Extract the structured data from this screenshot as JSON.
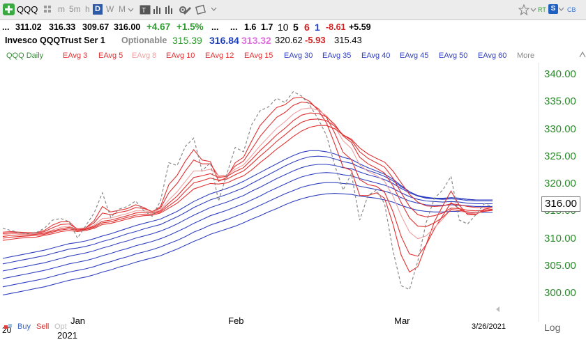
{
  "toolbar": {
    "symbol": "QQQ",
    "periods": [
      "m",
      "5m",
      "h",
      "D",
      "W",
      "M"
    ],
    "active_period": "D",
    "tags": [
      "RT",
      "CB"
    ],
    "s_label": "S"
  },
  "quote": {
    "prefix": "...",
    "open": "311.02",
    "high": "316.33",
    "low": "309.67",
    "close": "316.00",
    "change": "+4.67",
    "change_pct": "+1.5%",
    "dots1": "...",
    "dots2": "...",
    "v1": "1.6",
    "v2": "1.7",
    "n1": "10",
    "n2": "5",
    "n3": "6",
    "n4": "1",
    "chg2": "-8.61",
    "chg3": "+5.59"
  },
  "info": {
    "name": "Invesco QQQTrust Ser 1",
    "optionable": "Optionable",
    "p1": "315.39",
    "p2": "316.84",
    "p3": "313.32",
    "p4": "320.62",
    "p5": "-5.93",
    "p6": "315.43"
  },
  "ma_legend": {
    "items": [
      {
        "label": "QQQ Daily",
        "color": "#3a8a3a"
      },
      {
        "label": "EAvg 3",
        "color": "#e03030"
      },
      {
        "label": "EAvg 5",
        "color": "#e03030"
      },
      {
        "label": "EAvg 8",
        "color": "#f0a0a0"
      },
      {
        "label": "EAvg 10",
        "color": "#e03030"
      },
      {
        "label": "EAvg 12",
        "color": "#e03030"
      },
      {
        "label": "EAvg 15",
        "color": "#e03030"
      },
      {
        "label": "EAvg 30",
        "color": "#3040c0"
      },
      {
        "label": "EAvg 35",
        "color": "#3040c0"
      },
      {
        "label": "EAvg 40",
        "color": "#3040c0"
      },
      {
        "label": "EAvg 45",
        "color": "#3040c0"
      },
      {
        "label": "EAvg 50",
        "color": "#3040c0"
      },
      {
        "label": "EAvg 60",
        "color": "#3040c0"
      },
      {
        "label": "More",
        "color": "#888888"
      }
    ]
  },
  "chart": {
    "price_label": "316.00",
    "date_label": "3/26/2021",
    "log_label": "Log",
    "y_left_partial": "20",
    "year_label": "2021",
    "buy": "Buy",
    "sell": "Sell",
    "opt": "Opt"
  },
  "chart_data": {
    "type": "line",
    "title": "QQQ Daily",
    "y_ticks": [
      "340.00",
      "335.00",
      "330.00",
      "325.00",
      "320.00",
      "315.00",
      "310.00",
      "305.00",
      "300.00"
    ],
    "ylim": [
      298,
      342
    ],
    "x_ticks": [
      "Jan",
      "Feb",
      "Mar"
    ],
    "x_tick_index": [
      9,
      28,
      48
    ],
    "series": [
      {
        "name": "QQQ Daily",
        "color": "#888888",
        "dashed": true,
        "values": [
          312.0,
          311.6,
          311.2,
          311.0,
          311.2,
          312.0,
          313.5,
          313.8,
          313.2,
          310.2,
          312.5,
          314.8,
          318.5,
          314.0,
          315.5,
          316.0,
          317.0,
          315.2,
          314.2,
          317.0,
          324.0,
          323.5,
          327.0,
          328.5,
          322.5,
          324.0,
          317.0,
          322.0,
          326.8,
          326.0,
          331.0,
          333.5,
          334.2,
          335.8,
          335.0,
          337.0,
          336.2,
          334.5,
          332.0,
          329.0,
          323.5,
          319.0,
          322.0,
          313.5,
          318.0,
          319.0,
          316.5,
          308.0,
          301.5,
          300.8,
          306.0,
          313.0,
          317.5,
          319.0,
          321.5,
          313.5,
          312.8,
          314.5,
          316.5,
          316.0
        ]
      },
      {
        "name": "EAvg 3",
        "color": "#e03030",
        "values": [
          311.3,
          311.4,
          311.3,
          311.2,
          311.2,
          311.6,
          312.6,
          313.2,
          313.2,
          311.7,
          312.1,
          313.4,
          316.0,
          315.0,
          315.3,
          315.6,
          316.3,
          315.8,
          315.0,
          316.0,
          320.0,
          321.7,
          324.3,
          326.4,
          324.5,
          324.2,
          320.6,
          321.3,
          324.0,
          325.0,
          328.0,
          330.8,
          332.5,
          334.1,
          334.6,
          335.8,
          336.0,
          335.2,
          333.6,
          331.3,
          327.4,
          323.2,
          322.6,
          318.0,
          318.0,
          318.5,
          317.5,
          312.8,
          307.1,
          304.0,
          305.0,
          309.0,
          313.2,
          316.1,
          318.8,
          316.2,
          314.5,
          314.5,
          315.5,
          315.8
        ]
      },
      {
        "name": "EAvg 5",
        "color": "#e03030",
        "values": [
          311.0,
          311.2,
          311.2,
          311.1,
          311.1,
          311.4,
          312.1,
          312.7,
          312.8,
          311.9,
          312.1,
          313.0,
          314.8,
          314.5,
          314.9,
          315.2,
          315.8,
          315.6,
          315.1,
          315.7,
          318.5,
          320.2,
          322.5,
          324.5,
          323.8,
          323.8,
          321.5,
          321.7,
          323.4,
          324.3,
          326.5,
          328.8,
          330.6,
          332.3,
          333.2,
          334.5,
          335.1,
          334.9,
          333.9,
          332.3,
          329.4,
          325.9,
          324.6,
          320.9,
          320.0,
          319.7,
          318.6,
          315.1,
          310.5,
          307.3,
          306.9,
          309.0,
          311.9,
          314.3,
          316.7,
          315.6,
          314.7,
          314.6,
          315.3,
          315.5
        ]
      },
      {
        "name": "EAvg 8",
        "color": "#f0a0a0",
        "values": [
          310.8,
          311.0,
          311.0,
          311.0,
          311.0,
          311.2,
          311.7,
          312.2,
          312.4,
          311.8,
          312.0,
          312.6,
          313.8,
          313.9,
          314.3,
          314.7,
          315.2,
          315.2,
          315.0,
          315.4,
          317.2,
          318.7,
          320.6,
          322.5,
          322.5,
          322.8,
          321.6,
          321.7,
          322.8,
          323.6,
          325.3,
          327.1,
          328.7,
          330.3,
          331.5,
          332.9,
          333.8,
          334.0,
          333.6,
          332.6,
          330.6,
          328.0,
          326.6,
          323.6,
          322.4,
          321.7,
          320.6,
          317.9,
          314.3,
          311.3,
          310.1,
          310.6,
          312.1,
          313.7,
          315.5,
          315.2,
          314.8,
          314.7,
          315.1,
          315.3
        ]
      },
      {
        "name": "EAvg 10",
        "color": "#e03030",
        "values": [
          310.5,
          310.7,
          310.8,
          310.8,
          310.9,
          311.1,
          311.5,
          311.9,
          312.2,
          311.7,
          311.9,
          312.4,
          313.3,
          313.5,
          313.9,
          314.3,
          314.8,
          314.9,
          314.8,
          315.2,
          316.6,
          317.9,
          319.6,
          321.3,
          321.6,
          322.0,
          321.3,
          321.5,
          322.4,
          323.1,
          324.6,
          326.2,
          327.6,
          329.1,
          330.3,
          331.7,
          332.7,
          333.1,
          333.0,
          332.4,
          331.0,
          328.9,
          327.7,
          325.0,
          323.8,
          323.0,
          322.1,
          319.8,
          316.7,
          313.9,
          312.4,
          312.3,
          313.0,
          314.0,
          315.4,
          315.3,
          315.0,
          314.9,
          315.1,
          315.3
        ]
      },
      {
        "name": "EAvg 12",
        "color": "#e03030",
        "values": [
          310.2,
          310.4,
          310.5,
          310.6,
          310.7,
          310.9,
          311.3,
          311.7,
          311.9,
          311.6,
          311.8,
          312.2,
          313.0,
          313.2,
          313.6,
          314.0,
          314.4,
          314.6,
          314.6,
          315.0,
          316.1,
          317.2,
          318.8,
          320.3,
          320.7,
          321.2,
          320.8,
          321.0,
          321.8,
          322.5,
          323.8,
          325.2,
          326.5,
          327.9,
          329.1,
          330.4,
          331.4,
          331.9,
          332.0,
          331.7,
          330.7,
          329.1,
          328.1,
          326.0,
          324.8,
          324.0,
          323.2,
          321.2,
          318.5,
          316.0,
          314.5,
          314.1,
          314.3,
          314.8,
          315.7,
          315.6,
          315.3,
          315.2,
          315.3,
          315.4
        ]
      },
      {
        "name": "EAvg 15",
        "color": "#e03030",
        "values": [
          309.8,
          310.0,
          310.2,
          310.3,
          310.4,
          310.7,
          311.0,
          311.4,
          311.6,
          311.4,
          311.6,
          312.0,
          312.7,
          312.9,
          313.3,
          313.7,
          314.1,
          314.3,
          314.4,
          314.8,
          315.7,
          316.6,
          317.9,
          319.2,
          319.7,
          320.2,
          320.1,
          320.3,
          321.0,
          321.6,
          322.7,
          324.0,
          325.2,
          326.5,
          327.6,
          328.8,
          329.8,
          330.5,
          330.8,
          330.8,
          330.2,
          329.1,
          328.3,
          326.7,
          325.6,
          324.8,
          324.1,
          322.5,
          320.3,
          318.2,
          316.8,
          316.1,
          316.0,
          316.1,
          316.5,
          316.3,
          316.0,
          315.8,
          315.8,
          315.8
        ]
      },
      {
        "name": "EAvg 30",
        "color": "#3040c0",
        "values": [
          306.5,
          306.8,
          307.1,
          307.4,
          307.7,
          308.0,
          308.4,
          308.8,
          309.2,
          309.4,
          309.7,
          310.1,
          310.6,
          311.0,
          311.5,
          312.0,
          312.5,
          312.9,
          313.3,
          313.7,
          314.4,
          315.1,
          316.0,
          316.9,
          317.6,
          318.3,
          318.8,
          319.3,
          319.9,
          320.6,
          321.4,
          322.2,
          323.0,
          323.8,
          324.6,
          325.3,
          325.9,
          326.2,
          326.2,
          326.0,
          325.6,
          325.0,
          324.6,
          323.8,
          323.1,
          322.5,
          321.9,
          321.0,
          319.8,
          318.7,
          317.9,
          317.5,
          317.4,
          317.4,
          317.6,
          317.5,
          317.3,
          317.2,
          317.2,
          317.2
        ]
      },
      {
        "name": "EAvg 35",
        "color": "#3040c0",
        "values": [
          305.5,
          305.8,
          306.1,
          306.4,
          306.7,
          307.0,
          307.4,
          307.8,
          308.2,
          308.4,
          308.7,
          309.1,
          309.6,
          310.0,
          310.5,
          311.0,
          311.4,
          311.9,
          312.3,
          312.7,
          313.4,
          314.1,
          314.9,
          315.8,
          316.5,
          317.2,
          317.7,
          318.2,
          318.8,
          319.4,
          320.2,
          321.0,
          321.8,
          322.6,
          323.4,
          324.1,
          324.7,
          325.1,
          325.2,
          325.1,
          324.7,
          324.2,
          323.9,
          323.2,
          322.6,
          322.1,
          321.5,
          320.7,
          319.6,
          318.7,
          318.0,
          317.7,
          317.5,
          317.5,
          317.6,
          317.5,
          317.3,
          317.2,
          317.2,
          317.2
        ]
      },
      {
        "name": "EAvg 40",
        "color": "#3040c0",
        "values": [
          304.2,
          304.5,
          304.8,
          305.1,
          305.4,
          305.7,
          306.1,
          306.5,
          306.9,
          307.2,
          307.5,
          307.9,
          308.4,
          308.8,
          309.3,
          309.7,
          310.2,
          310.6,
          311.0,
          311.5,
          312.1,
          312.8,
          313.6,
          314.4,
          315.1,
          315.8,
          316.3,
          316.8,
          317.4,
          318.0,
          318.8,
          319.5,
          320.3,
          321.1,
          321.8,
          322.5,
          323.1,
          323.5,
          323.7,
          323.7,
          323.5,
          323.1,
          322.9,
          322.3,
          321.8,
          321.4,
          320.9,
          320.2,
          319.3,
          318.5,
          317.9,
          317.6,
          317.4,
          317.3,
          317.4,
          317.3,
          317.1,
          317.0,
          317.0,
          317.0
        ]
      },
      {
        "name": "EAvg 45",
        "color": "#3040c0",
        "values": [
          302.8,
          303.1,
          303.4,
          303.7,
          304.0,
          304.3,
          304.7,
          305.1,
          305.5,
          305.8,
          306.1,
          306.5,
          307.0,
          307.4,
          307.9,
          308.3,
          308.8,
          309.2,
          309.6,
          310.1,
          310.7,
          311.4,
          312.1,
          312.9,
          313.6,
          314.3,
          314.8,
          315.3,
          315.9,
          316.5,
          317.2,
          317.9,
          318.7,
          319.4,
          320.1,
          320.8,
          321.4,
          321.8,
          322.1,
          322.2,
          322.1,
          321.8,
          321.6,
          321.1,
          320.7,
          320.3,
          319.9,
          319.3,
          318.5,
          317.8,
          317.3,
          317.0,
          316.9,
          316.8,
          316.9,
          316.8,
          316.6,
          316.5,
          316.5,
          316.5
        ]
      },
      {
        "name": "EAvg 50",
        "color": "#3040c0",
        "values": [
          301.3,
          301.6,
          301.9,
          302.2,
          302.5,
          302.8,
          303.2,
          303.6,
          304.0,
          304.3,
          304.6,
          305.0,
          305.5,
          305.9,
          306.4,
          306.8,
          307.3,
          307.7,
          308.1,
          308.6,
          309.2,
          309.8,
          310.5,
          311.3,
          311.9,
          312.6,
          313.1,
          313.6,
          314.2,
          314.8,
          315.5,
          316.2,
          316.9,
          317.6,
          318.3,
          318.9,
          319.5,
          319.9,
          320.2,
          320.4,
          320.4,
          320.2,
          320.1,
          319.7,
          319.4,
          319.1,
          318.8,
          318.3,
          317.6,
          317.0,
          316.6,
          316.3,
          316.2,
          316.2,
          316.3,
          316.2,
          316.1,
          316.0,
          316.0,
          316.0
        ]
      },
      {
        "name": "EAvg 60",
        "color": "#3040c0",
        "values": [
          299.8,
          300.1,
          300.4,
          300.7,
          301.0,
          301.3,
          301.7,
          302.1,
          302.5,
          302.8,
          303.1,
          303.5,
          304.0,
          304.4,
          304.9,
          305.3,
          305.8,
          306.2,
          306.6,
          307.0,
          307.6,
          308.2,
          308.9,
          309.6,
          310.2,
          310.9,
          311.4,
          311.9,
          312.4,
          313.0,
          313.7,
          314.3,
          315.0,
          315.6,
          316.3,
          316.9,
          317.4,
          317.8,
          318.1,
          318.3,
          318.4,
          318.3,
          318.2,
          317.9,
          317.7,
          317.5,
          317.2,
          316.8,
          316.2,
          315.7,
          315.3,
          315.1,
          315.0,
          315.0,
          315.1,
          315.1,
          315.0,
          314.9,
          314.9,
          314.9
        ]
      }
    ]
  }
}
